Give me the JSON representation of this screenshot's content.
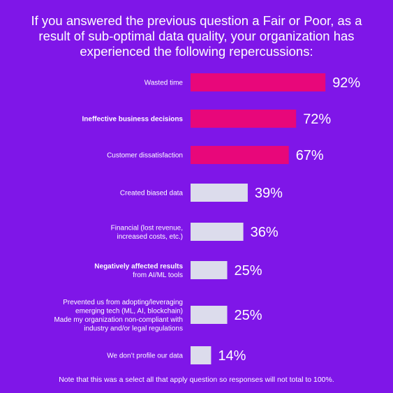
{
  "title_lines": [
    "If you answered the previous question a Fair or Poor, as a",
    "result of sub-optimal data quality, your organization has",
    "experienced the following repercussions:"
  ],
  "note": "Note that this was a select all that apply question so responses will not total to 100%.",
  "colors": {
    "background": "#7f16e8",
    "highlight_bar": "#e8077a",
    "default_bar": "#dcdcec",
    "text": "#ffffff"
  },
  "chart_data": {
    "type": "bar",
    "orientation": "horizontal",
    "title": "If you answered the previous question a Fair or Poor, as a result of sub-optimal data quality, your organization has experienced the following repercussions:",
    "xlim": [
      0,
      100
    ],
    "grid": false,
    "categories": [
      {
        "lines": [
          "Wasted time"
        ],
        "value": 92,
        "label": "92%",
        "highlight": true,
        "bold": false
      },
      {
        "lines": [
          "Ineffective business decisions"
        ],
        "value": 72,
        "label": "72%",
        "highlight": true,
        "bold": true
      },
      {
        "lines": [
          "Customer dissatisfaction"
        ],
        "value": 67,
        "label": "67%",
        "highlight": true,
        "bold": false
      },
      {
        "lines": [
          "Created biased data"
        ],
        "value": 39,
        "label": "39%",
        "highlight": false,
        "bold": false
      },
      {
        "lines": [
          "Financial (lost revenue,",
          "increased costs, etc.)"
        ],
        "value": 36,
        "label": "36%",
        "highlight": false,
        "bold": false
      },
      {
        "lines": [
          "Negatively affected results",
          "from AI/ML tools"
        ],
        "value": 25,
        "label": "25%",
        "highlight": false,
        "bold": true,
        "bold_lines": [
          0
        ]
      },
      {
        "lines": [
          "Prevented us from adopting/leveraging",
          "emerging tech (ML, AI, blockchain)",
          "Made my organization non-compliant with",
          "industry and/or legal regulations"
        ],
        "value": 25,
        "label": "25%",
        "highlight": false,
        "bold": false
      },
      {
        "lines": [
          "We don’t profile our data"
        ],
        "value": 14,
        "label": "14%",
        "highlight": false,
        "bold": false
      }
    ]
  }
}
